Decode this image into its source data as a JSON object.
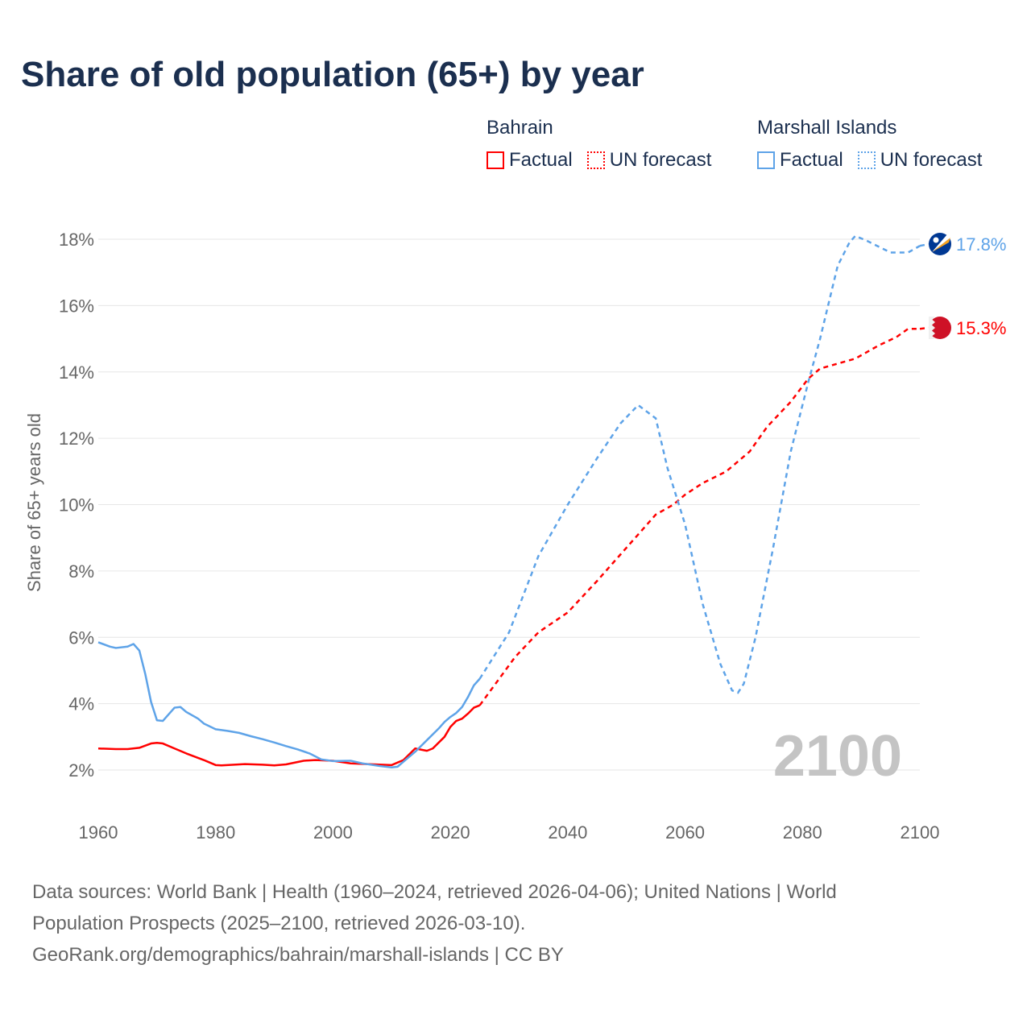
{
  "chart_data": {
    "type": "line",
    "title": "Share of old population (65+) by year",
    "ylabel": "Share of 65+ years old",
    "xlabel": "",
    "xlim": [
      1960,
      2100
    ],
    "ylim": [
      1,
      18.6
    ],
    "xticks": [
      "1960",
      "1980",
      "2000",
      "2020",
      "2040",
      "2060",
      "2080",
      "2100"
    ],
    "xtick_values": [
      1960,
      1980,
      2000,
      2020,
      2040,
      2060,
      2080,
      2100
    ],
    "yticks": [
      "2%",
      "4%",
      "6%",
      "8%",
      "10%",
      "12%",
      "14%",
      "16%",
      "18%"
    ],
    "ytick_values": [
      2,
      4,
      6,
      8,
      10,
      12,
      14,
      16,
      18
    ],
    "grid": true,
    "legend_placement": "top-right",
    "year_watermark": "2100",
    "series": [
      {
        "name": "Bahrain",
        "color": "#ff0000",
        "end_label": "15.3%",
        "factual": {
          "label": "Factual",
          "x": [
            1960,
            1963,
            1965,
            1967,
            1969,
            1970,
            1971,
            1973,
            1975,
            1978,
            1980,
            1981,
            1985,
            1988,
            1990,
            1992,
            1995,
            1997,
            2000,
            2003,
            2007,
            2010,
            2012,
            2014,
            2016,
            2017,
            2019,
            2020,
            2021,
            2022,
            2023,
            2024,
            2025
          ],
          "y": [
            2.65,
            2.63,
            2.63,
            2.67,
            2.8,
            2.82,
            2.8,
            2.65,
            2.5,
            2.3,
            2.15,
            2.14,
            2.18,
            2.16,
            2.14,
            2.17,
            2.28,
            2.3,
            2.28,
            2.2,
            2.17,
            2.15,
            2.3,
            2.65,
            2.58,
            2.65,
            3.0,
            3.3,
            3.48,
            3.55,
            3.7,
            3.88,
            3.95
          ]
        },
        "forecast": {
          "label": "UN forecast",
          "x": [
            2025,
            2031,
            2035,
            2040,
            2045,
            2050,
            2055,
            2058,
            2060,
            2063,
            2067,
            2071,
            2074,
            2078,
            2081,
            2083,
            2086,
            2089,
            2093,
            2096,
            2098,
            2100
          ],
          "y": [
            3.95,
            5.4,
            6.15,
            6.75,
            7.7,
            8.7,
            9.7,
            10.0,
            10.3,
            10.65,
            11.0,
            11.6,
            12.35,
            13.1,
            13.8,
            14.1,
            14.25,
            14.4,
            14.8,
            15.05,
            15.3,
            15.3
          ]
        }
      },
      {
        "name": "Marshall Islands",
        "color": "#5ea3e8",
        "end_label": "17.8%",
        "factual": {
          "label": "Factual",
          "x": [
            1960,
            1962,
            1963,
            1965,
            1966,
            1967,
            1968,
            1969,
            1970,
            1971,
            1973,
            1974,
            1975,
            1977,
            1978,
            1980,
            1982,
            1984,
            1986,
            1988,
            1990,
            1992,
            1994,
            1996,
            1998,
            2000,
            2003,
            2005,
            2008,
            2010,
            2011,
            2012,
            2014,
            2016,
            2018,
            2019,
            2020,
            2021,
            2022,
            2023,
            2024,
            2025
          ],
          "y": [
            5.85,
            5.72,
            5.68,
            5.72,
            5.8,
            5.6,
            4.9,
            4.05,
            3.5,
            3.48,
            3.88,
            3.9,
            3.75,
            3.55,
            3.4,
            3.23,
            3.18,
            3.12,
            3.02,
            2.93,
            2.83,
            2.72,
            2.62,
            2.5,
            2.32,
            2.27,
            2.28,
            2.2,
            2.12,
            2.08,
            2.1,
            2.25,
            2.55,
            2.9,
            3.25,
            3.45,
            3.6,
            3.72,
            3.9,
            4.2,
            4.55,
            4.75
          ]
        },
        "forecast": {
          "label": "UN forecast",
          "x": [
            2025,
            2030,
            2035,
            2040,
            2045,
            2049,
            2052,
            2055,
            2057,
            2060,
            2063,
            2066,
            2068,
            2069,
            2070,
            2072,
            2075,
            2078,
            2081,
            2083,
            2086,
            2088,
            2089,
            2091,
            2095,
            2098,
            2100
          ],
          "y": [
            4.75,
            6.15,
            8.45,
            10.0,
            11.4,
            12.45,
            13.0,
            12.6,
            11.1,
            9.4,
            7.0,
            5.2,
            4.4,
            4.33,
            4.6,
            6.0,
            8.7,
            11.6,
            13.7,
            15.0,
            17.2,
            17.9,
            18.1,
            17.95,
            17.6,
            17.6,
            17.8
          ]
        }
      }
    ]
  },
  "legend": {
    "groups": [
      {
        "name": "Bahrain",
        "factual": "Factual",
        "forecast": "UN forecast"
      },
      {
        "name": "Marshall Islands",
        "factual": "Factual",
        "forecast": "UN forecast"
      }
    ]
  },
  "sources": {
    "line1": "Data sources: World Bank | Health (1960–2024, retrieved 2026-04-06); United Nations | World",
    "line2": "Population Prospects (2025–2100, retrieved 2026-03-10).",
    "line3": "GeoRank.org/demographics/bahrain/marshall-islands | CC BY"
  }
}
